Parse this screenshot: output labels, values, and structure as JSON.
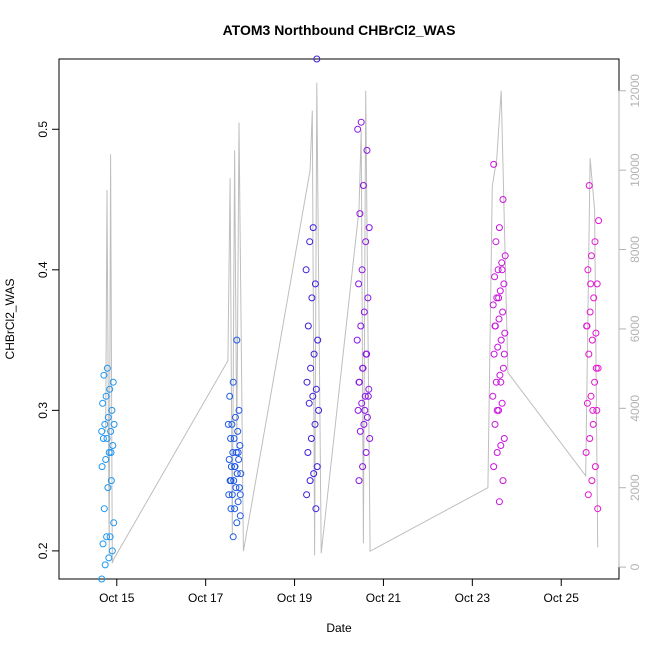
{
  "chart_data": {
    "type": "scatter",
    "title": "ATOM3 Northbound CHBrCl2_WAS",
    "xlabel": "Date",
    "ylabel": "CHBrCl2_WAS",
    "x_ticks": [
      "Oct 15",
      "Oct 17",
      "Oct 19",
      "Oct 21",
      "Oct 23",
      "Oct 25"
    ],
    "x_tick_days": [
      15,
      17,
      19,
      21,
      23,
      25
    ],
    "xlim_days": [
      13.7,
      26.3
    ],
    "ylim": [
      0.18,
      0.55
    ],
    "y_ticks": [
      0.2,
      0.3,
      0.4,
      0.5
    ],
    "y2_ticks": [
      0,
      2000,
      4000,
      6000,
      8000,
      10000,
      12000
    ],
    "y2lim": [
      -300,
      12800
    ],
    "grid": false,
    "marker_colors": [
      "#1e96f0",
      "#1e5ae6",
      "#3c1edc",
      "#8c14e6",
      "#c814dc",
      "#e614d2"
    ],
    "line_color": "#bebebe",
    "altitude_line": [
      [
        14.75,
        3400
      ],
      [
        14.78,
        9500
      ],
      [
        14.83,
        300
      ],
      [
        14.86,
        10400
      ],
      [
        14.9,
        100
      ],
      [
        14.93,
        200
      ],
      [
        17.5,
        5200
      ],
      [
        17.55,
        9800
      ],
      [
        17.6,
        800
      ],
      [
        17.65,
        10500
      ],
      [
        17.7,
        3000
      ],
      [
        17.75,
        11200
      ],
      [
        17.85,
        400
      ],
      [
        19.35,
        10000
      ],
      [
        19.4,
        11500
      ],
      [
        19.45,
        300
      ],
      [
        19.5,
        12200
      ],
      [
        19.6,
        350
      ],
      [
        20.45,
        9000
      ],
      [
        20.5,
        11000
      ],
      [
        20.55,
        600
      ],
      [
        20.6,
        12000
      ],
      [
        20.7,
        400
      ],
      [
        23.35,
        2000
      ],
      [
        23.45,
        9600
      ],
      [
        23.55,
        10300
      ],
      [
        23.65,
        12000
      ],
      [
        23.8,
        4900
      ],
      [
        25.55,
        2300
      ],
      [
        25.65,
        10300
      ],
      [
        25.75,
        9000
      ],
      [
        25.82,
        500
      ]
    ],
    "series": [
      {
        "flight_day": 14.8,
        "values": [
          0.18,
          0.19,
          0.195,
          0.2,
          0.205,
          0.21,
          0.21,
          0.22,
          0.23,
          0.245,
          0.25,
          0.26,
          0.265,
          0.27,
          0.275,
          0.28,
          0.28,
          0.285,
          0.29,
          0.29,
          0.295,
          0.3,
          0.305,
          0.31,
          0.315,
          0.32,
          0.325,
          0.33,
          0.27,
          0.285
        ]
      },
      {
        "flight_day": 17.65,
        "values": [
          0.21,
          0.22,
          0.225,
          0.23,
          0.23,
          0.235,
          0.24,
          0.24,
          0.245,
          0.245,
          0.25,
          0.25,
          0.255,
          0.255,
          0.26,
          0.26,
          0.265,
          0.265,
          0.27,
          0.27,
          0.275,
          0.28,
          0.28,
          0.285,
          0.29,
          0.29,
          0.295,
          0.3,
          0.31,
          0.32,
          0.35,
          0.24,
          0.25,
          0.26,
          0.27
        ]
      },
      {
        "flight_day": 19.4,
        "values": [
          0.23,
          0.24,
          0.25,
          0.255,
          0.26,
          0.27,
          0.28,
          0.29,
          0.3,
          0.305,
          0.31,
          0.315,
          0.32,
          0.33,
          0.34,
          0.35,
          0.36,
          0.38,
          0.39,
          0.4,
          0.42,
          0.43,
          0.55
        ]
      },
      {
        "flight_day": 20.55,
        "values": [
          0.25,
          0.26,
          0.27,
          0.28,
          0.285,
          0.29,
          0.295,
          0.3,
          0.305,
          0.31,
          0.315,
          0.32,
          0.33,
          0.34,
          0.35,
          0.36,
          0.37,
          0.38,
          0.39,
          0.4,
          0.42,
          0.43,
          0.44,
          0.46,
          0.485,
          0.5,
          0.505,
          0.3,
          0.31,
          0.32,
          0.33,
          0.34
        ]
      },
      {
        "flight_day": 23.6,
        "values": [
          0.235,
          0.25,
          0.26,
          0.27,
          0.275,
          0.28,
          0.29,
          0.3,
          0.305,
          0.31,
          0.32,
          0.325,
          0.33,
          0.34,
          0.345,
          0.35,
          0.355,
          0.36,
          0.365,
          0.37,
          0.375,
          0.38,
          0.385,
          0.39,
          0.395,
          0.4,
          0.405,
          0.41,
          0.42,
          0.43,
          0.45,
          0.475,
          0.3,
          0.32,
          0.34,
          0.36,
          0.38,
          0.4
        ]
      },
      {
        "flight_day": 25.7,
        "values": [
          0.23,
          0.24,
          0.25,
          0.26,
          0.27,
          0.28,
          0.29,
          0.3,
          0.305,
          0.31,
          0.32,
          0.33,
          0.34,
          0.35,
          0.355,
          0.36,
          0.37,
          0.38,
          0.39,
          0.4,
          0.41,
          0.42,
          0.435,
          0.46,
          0.3,
          0.33,
          0.36,
          0.39
        ]
      }
    ]
  }
}
